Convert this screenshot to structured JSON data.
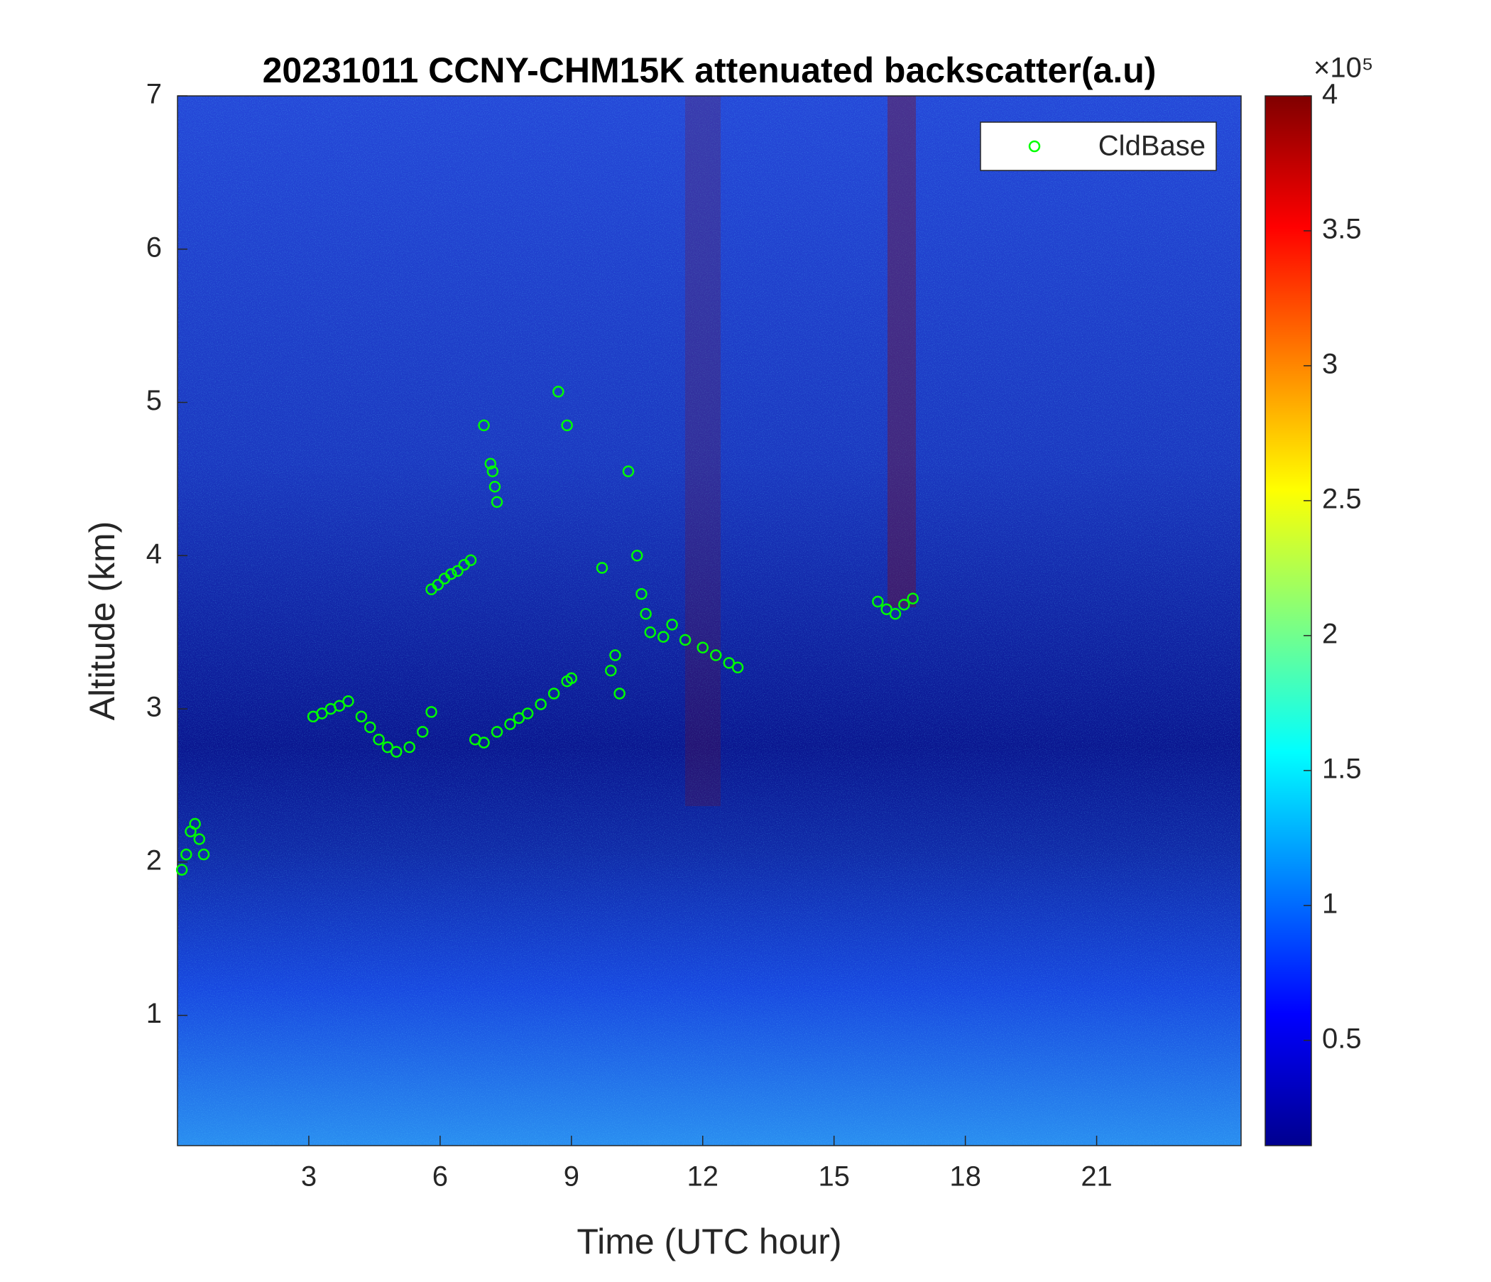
{
  "chart_data": {
    "type": "scatter",
    "title": "20231011 CCNY-CHM15K attenuated backscatter(a.u)",
    "xlabel": "Time (UTC hour)",
    "ylabel": "Altitude (km)",
    "xlim": [
      0,
      24.3
    ],
    "xticks": [
      3,
      6,
      9,
      12,
      15,
      18,
      21
    ],
    "ylim": [
      0.15,
      7
    ],
    "yticks": [
      1,
      2,
      3,
      4,
      5,
      6,
      7
    ],
    "colorbar": {
      "label": "×10⁵",
      "lim": [
        0.11,
        4
      ],
      "ticks": [
        0.5,
        1,
        1.5,
        2,
        2.5,
        3,
        3.5,
        4
      ]
    },
    "legend": "upper right",
    "series": [
      {
        "name": "CldBase",
        "color": "#00ff00",
        "x": [
          0.1,
          0.2,
          0.3,
          0.4,
          0.5,
          0.6,
          3.1,
          3.3,
          3.5,
          3.7,
          3.9,
          4.2,
          4.4,
          4.6,
          4.8,
          5.0,
          5.3,
          5.6,
          5.8,
          5.8,
          5.95,
          6.1,
          6.25,
          6.4,
          6.55,
          6.7,
          6.8,
          7.0,
          7.3,
          7.6,
          7.8,
          8.0,
          8.3,
          8.6,
          8.9,
          9.0,
          7.0,
          7.15,
          7.2,
          7.25,
          7.3,
          8.7,
          8.9,
          9.7,
          9.9,
          10.0,
          10.1,
          10.3,
          10.5,
          10.6,
          10.7,
          10.8,
          11.1,
          11.3,
          11.6,
          12.0,
          12.3,
          12.6,
          12.8,
          16.0,
          16.2,
          16.4,
          16.6,
          16.8
        ],
        "y": [
          1.95,
          2.05,
          2.2,
          2.25,
          2.15,
          2.05,
          2.95,
          2.97,
          3.0,
          3.02,
          3.05,
          2.95,
          2.88,
          2.8,
          2.75,
          2.72,
          2.75,
          2.85,
          2.98,
          3.78,
          3.81,
          3.85,
          3.88,
          3.9,
          3.94,
          3.97,
          2.8,
          2.78,
          2.85,
          2.9,
          2.94,
          2.97,
          3.03,
          3.1,
          3.18,
          3.2,
          4.85,
          4.6,
          4.55,
          4.45,
          4.35,
          5.07,
          4.85,
          3.92,
          3.25,
          3.35,
          3.1,
          4.55,
          4.0,
          3.75,
          3.62,
          3.5,
          3.47,
          3.55,
          3.45,
          3.4,
          3.35,
          3.3,
          3.27,
          3.7,
          3.65,
          3.62,
          3.68,
          3.72
        ]
      }
    ]
  }
}
